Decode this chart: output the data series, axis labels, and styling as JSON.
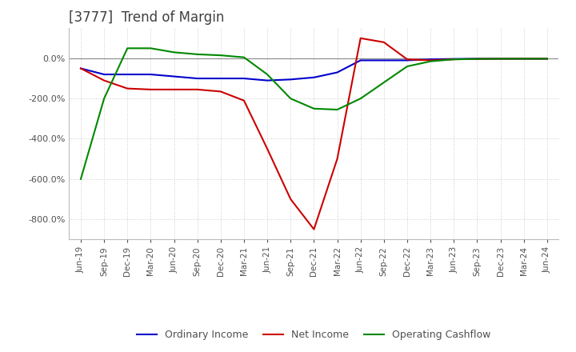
{
  "title": "[3777]  Trend of Margin",
  "title_color": "#404040",
  "background_color": "#ffffff",
  "grid_color": "#cccccc",
  "ylim": [
    -900,
    150
  ],
  "yticks": [
    0,
    -200,
    -400,
    -600,
    -800
  ],
  "legend_entries": [
    "Ordinary Income",
    "Net Income",
    "Operating Cashflow"
  ],
  "line_colors": [
    "#0000cc",
    "#cc0000",
    "#008800"
  ],
  "x_labels": [
    "Jun-19",
    "Sep-19",
    "Dec-19",
    "Mar-20",
    "Jun-20",
    "Sep-20",
    "Dec-20",
    "Mar-21",
    "Jun-21",
    "Sep-21",
    "Dec-21",
    "Mar-22",
    "Jun-22",
    "Sep-22",
    "Dec-22",
    "Mar-23",
    "Jun-23",
    "Sep-23",
    "Dec-23",
    "Mar-24",
    "Jun-24"
  ],
  "ordinary_income": [
    -50,
    -80,
    -80,
    -80,
    -90,
    -100,
    -100,
    -100,
    -110,
    -105,
    -95,
    -70,
    -10,
    -10,
    -10,
    -5,
    -3,
    -2,
    -2,
    -2,
    -2
  ],
  "net_income": [
    -50,
    -110,
    -150,
    -155,
    -155,
    -155,
    -165,
    -210,
    -450,
    -700,
    -850,
    -500,
    100,
    80,
    -5,
    -10,
    -5,
    -3,
    -2,
    -2,
    -2
  ],
  "operating_cashflow": [
    -600,
    -200,
    50,
    50,
    30,
    20,
    15,
    5,
    -80,
    -200,
    -250,
    -255,
    -200,
    -120,
    -40,
    -15,
    -5,
    -3,
    -2,
    -2,
    -2
  ]
}
